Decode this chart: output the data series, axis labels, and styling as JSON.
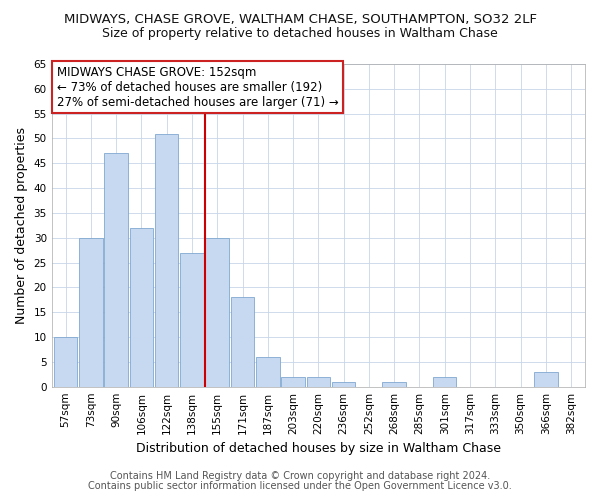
{
  "title": "MIDWAYS, CHASE GROVE, WALTHAM CHASE, SOUTHAMPTON, SO32 2LF",
  "subtitle": "Size of property relative to detached houses in Waltham Chase",
  "xlabel": "Distribution of detached houses by size in Waltham Chase",
  "ylabel": "Number of detached properties",
  "bar_labels": [
    "57sqm",
    "73sqm",
    "90sqm",
    "106sqm",
    "122sqm",
    "138sqm",
    "155sqm",
    "171sqm",
    "187sqm",
    "203sqm",
    "220sqm",
    "236sqm",
    "252sqm",
    "268sqm",
    "285sqm",
    "301sqm",
    "317sqm",
    "333sqm",
    "350sqm",
    "366sqm",
    "382sqm"
  ],
  "bar_values": [
    10,
    30,
    47,
    32,
    51,
    27,
    30,
    18,
    6,
    2,
    2,
    1,
    0,
    1,
    0,
    2,
    0,
    0,
    0,
    3,
    0
  ],
  "bar_color": "#c6d9f0",
  "bar_edge_color": "#7fa8d0",
  "vline_color": "#cc0000",
  "ylim": [
    0,
    65
  ],
  "yticks": [
    0,
    5,
    10,
    15,
    20,
    25,
    30,
    35,
    40,
    45,
    50,
    55,
    60,
    65
  ],
  "annotation_title": "MIDWAYS CHASE GROVE: 152sqm",
  "annotation_line1": "← 73% of detached houses are smaller (192)",
  "annotation_line2": "27% of semi-detached houses are larger (71) →",
  "footer1": "Contains HM Land Registry data © Crown copyright and database right 2024.",
  "footer2": "Contains public sector information licensed under the Open Government Licence v3.0.",
  "bg_color": "#ffffff",
  "grid_color": "#c8d4e8",
  "title_fontsize": 9.5,
  "subtitle_fontsize": 9,
  "axis_label_fontsize": 9,
  "tick_fontsize": 7.5,
  "annotation_fontsize": 8.5,
  "footer_fontsize": 7
}
